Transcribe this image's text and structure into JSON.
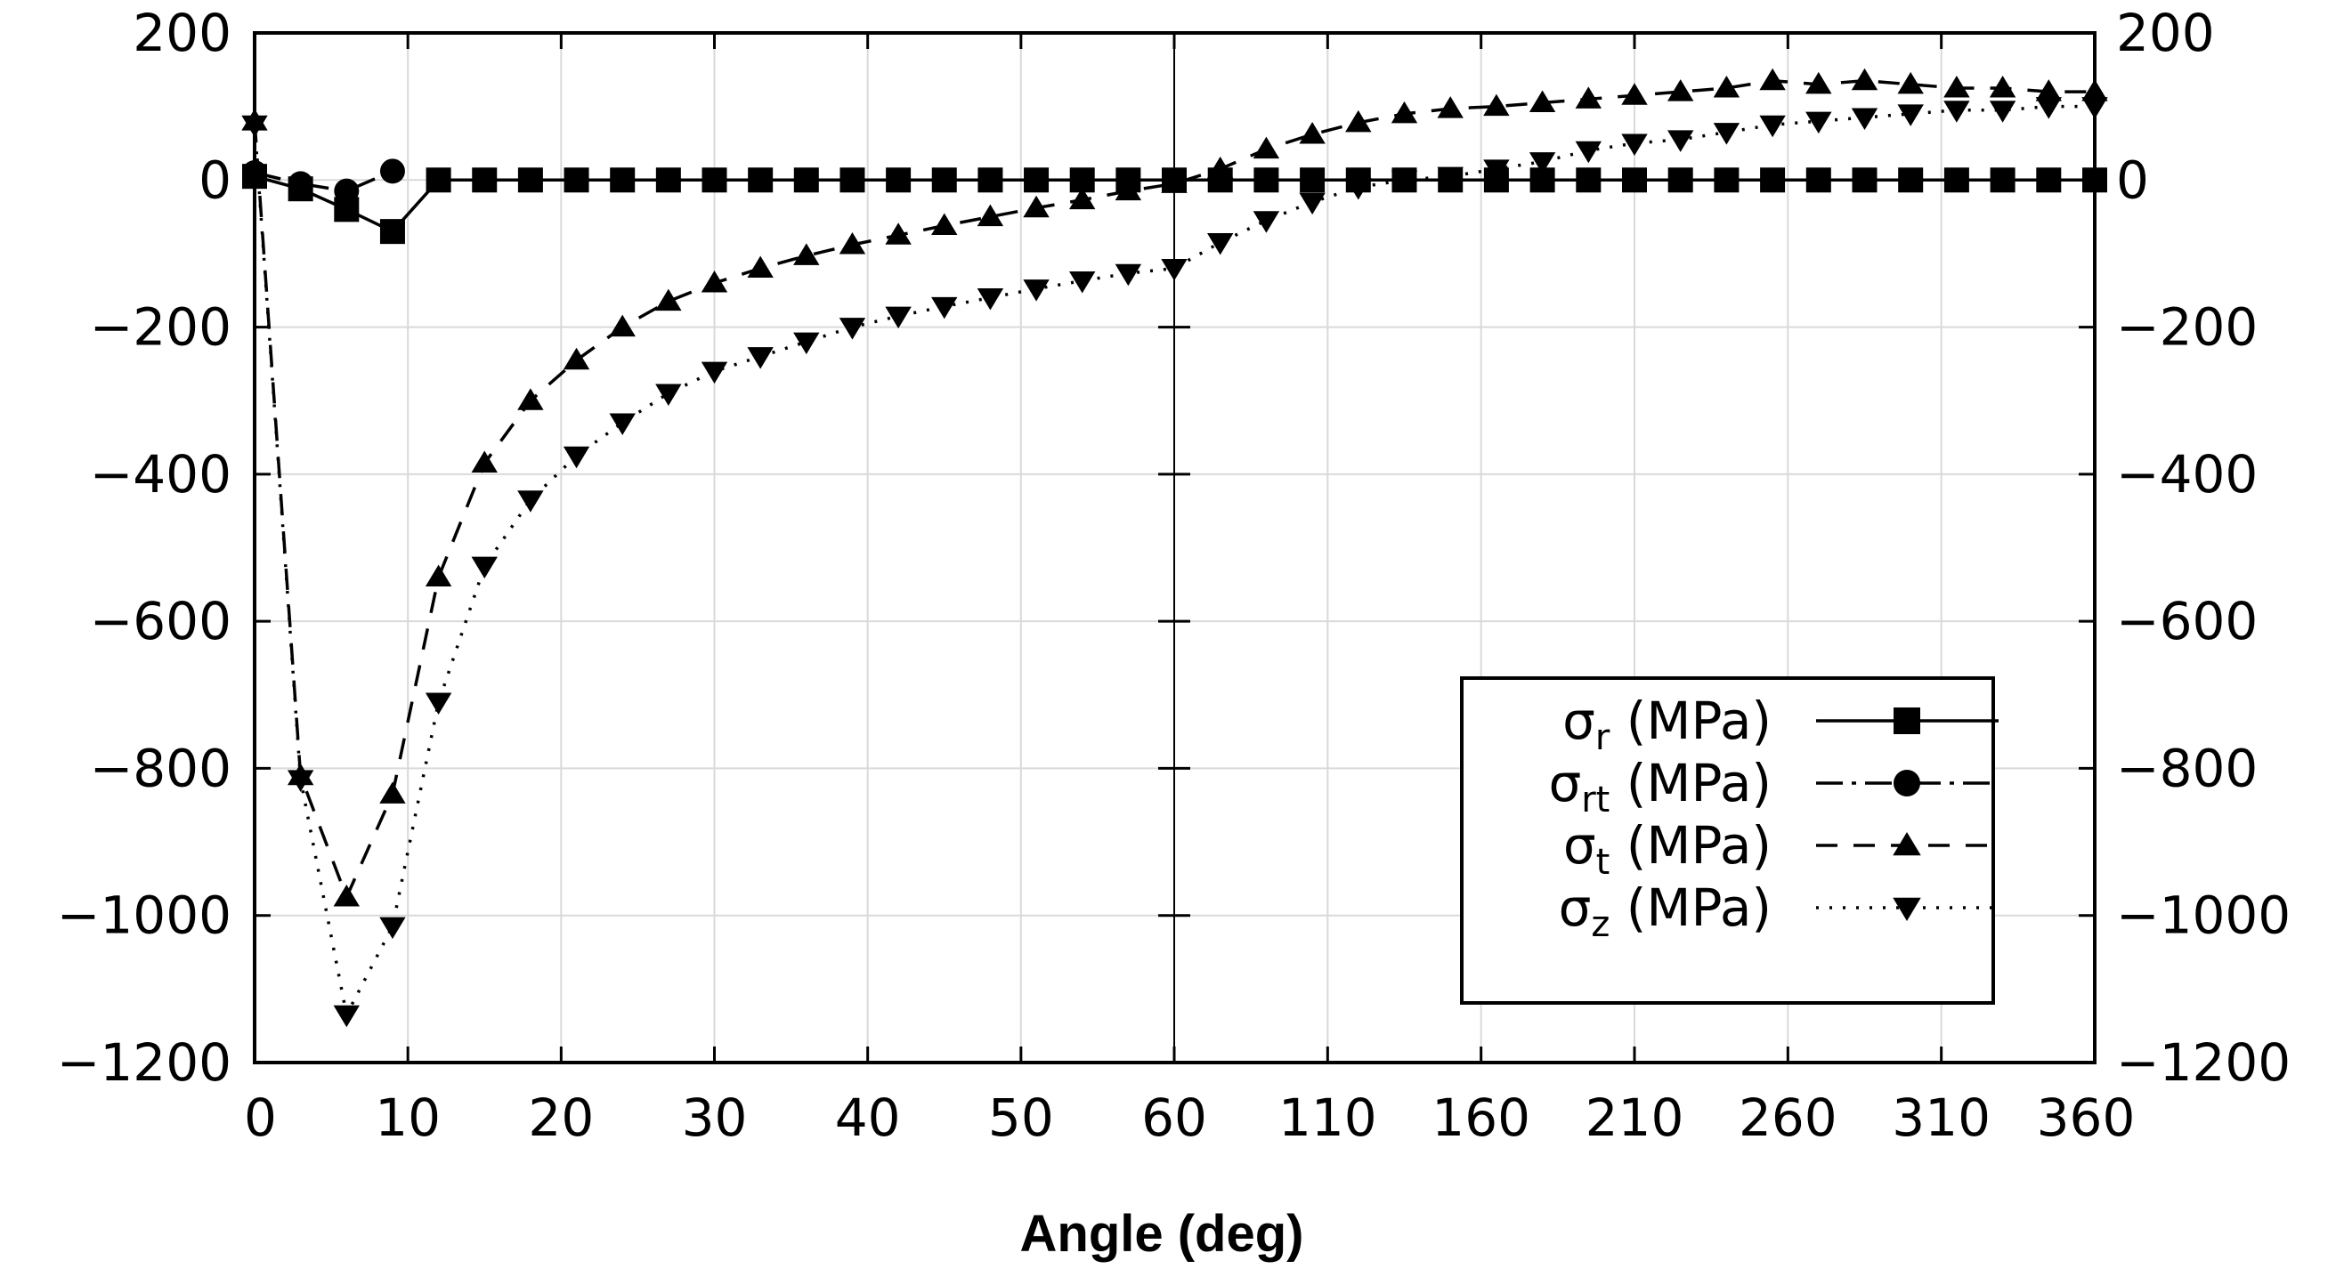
{
  "chart_data": {
    "type": "line",
    "title": "",
    "xlabel": "Angle (deg)",
    "ylabel": "",
    "ylim": [
      -1200,
      200
    ],
    "yticks": [
      200,
      0,
      -200,
      -400,
      -600,
      -800,
      -1000,
      -1200
    ],
    "ytick_labels": [
      "200",
      "0",
      "−200",
      "−400",
      "−600",
      "−800",
      "−1000",
      "−1200"
    ],
    "x_segments": [
      {
        "range": [
          0,
          60
        ],
        "ticks": [
          0,
          10,
          20,
          30,
          40,
          50,
          60
        ]
      },
      {
        "range": [
          60,
          360
        ],
        "ticks": [
          110,
          160,
          210,
          260,
          310,
          360
        ]
      }
    ],
    "xtick_labels": [
      "0",
      "10",
      "20",
      "30",
      "40",
      "50",
      "60",
      "110",
      "160",
      "210",
      "260",
      "310",
      "360"
    ],
    "grid": true,
    "legend_position": "bottom-right",
    "series": [
      {
        "name": "σr (MPa)",
        "symbol": "σ",
        "subscript": "r",
        "unit": "(MPa)",
        "marker": "square",
        "dash": "solid",
        "x": [
          0,
          3,
          6,
          9,
          12,
          15,
          18,
          21,
          24,
          27,
          30,
          33,
          36,
          39,
          42,
          45,
          48,
          51,
          54,
          57,
          60,
          75,
          90,
          105,
          120,
          135,
          150,
          165,
          180,
          195,
          210,
          225,
          240,
          255,
          270,
          285,
          300,
          315,
          330,
          345,
          360
        ],
        "values": [
          5,
          -12,
          -40,
          -70,
          0,
          0,
          0,
          0,
          0,
          0,
          0,
          0,
          0,
          0,
          0,
          0,
          0,
          0,
          0,
          0,
          0,
          0,
          0,
          0,
          0,
          0,
          0,
          0,
          0,
          0,
          0,
          0,
          0,
          0,
          0,
          0,
          0,
          0,
          0,
          0,
          0
        ]
      },
      {
        "name": "σrt (MPa)",
        "symbol": "σ",
        "subscript": "rt",
        "unit": "(MPa)",
        "marker": "circle",
        "dash": "dash-dot",
        "x": [
          0,
          3,
          6,
          9
        ],
        "values": [
          10,
          -5,
          -15,
          12
        ]
      },
      {
        "name": "σt (MPa)",
        "symbol": "σ",
        "subscript": "t",
        "unit": "(MPa)",
        "marker": "triangle-up",
        "dash": "dashed",
        "x": [
          0,
          3,
          6,
          9,
          12,
          15,
          18,
          21,
          24,
          27,
          30,
          33,
          36,
          39,
          42,
          45,
          48,
          51,
          54,
          57,
          60,
          75,
          90,
          105,
          120,
          135,
          150,
          165,
          180,
          195,
          210,
          225,
          240,
          255,
          270,
          285,
          300,
          315,
          330,
          345,
          360
        ],
        "values": [
          80,
          -810,
          -975,
          -835,
          -540,
          -385,
          -300,
          -245,
          -200,
          -165,
          -140,
          -120,
          -103,
          -88,
          -75,
          -62,
          -50,
          -38,
          -27,
          -15,
          -5,
          15,
          42,
          62,
          78,
          90,
          97,
          100,
          105,
          110,
          115,
          120,
          125,
          135,
          130,
          135,
          130,
          125,
          125,
          120,
          120
        ]
      },
      {
        "name": "σz (MPa)",
        "symbol": "σ",
        "subscript": "z",
        "unit": "(MPa)",
        "marker": "triangle-down",
        "dash": "dotted",
        "x": [
          0,
          3,
          6,
          9,
          12,
          15,
          18,
          21,
          24,
          27,
          30,
          33,
          36,
          39,
          42,
          45,
          48,
          51,
          54,
          57,
          60,
          75,
          90,
          105,
          120,
          135,
          150,
          165,
          180,
          195,
          210,
          225,
          240,
          255,
          270,
          285,
          300,
          315,
          330,
          345,
          360
        ],
        "values": [
          75,
          -815,
          -1135,
          -1015,
          -710,
          -525,
          -435,
          -375,
          -330,
          -290,
          -260,
          -240,
          -220,
          -200,
          -185,
          -172,
          -160,
          -148,
          -137,
          -127,
          -120,
          -85,
          -55,
          -30,
          -10,
          0,
          5,
          15,
          25,
          40,
          50,
          55,
          65,
          75,
          80,
          85,
          90,
          95,
          95,
          100,
          100
        ]
      }
    ]
  }
}
